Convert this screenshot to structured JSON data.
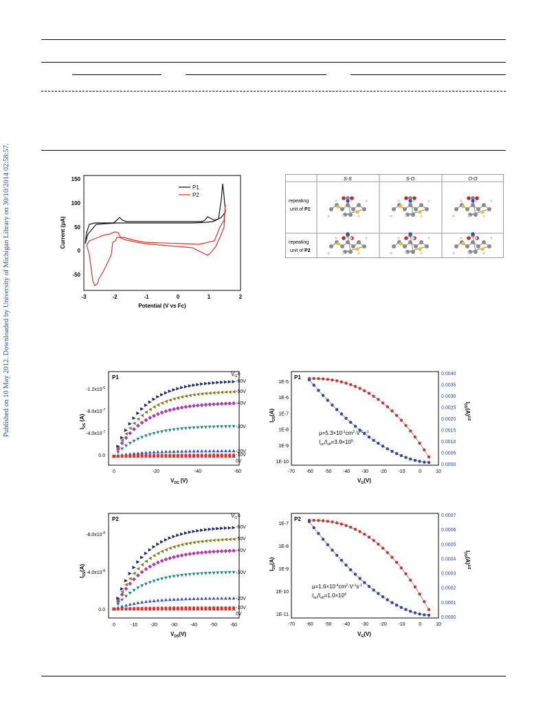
{
  "sidebar": {
    "text": "Published on 10 May 2012. Downloaded by University of Michigan Library on 30/10/2014 02:58:57."
  },
  "cv": {
    "ylabel": "Current (μA)",
    "xlabel": "Potential (V vs Fc)",
    "xticks": [
      "-3",
      "-2",
      "-1",
      "0",
      "1",
      "2"
    ],
    "yticks": [
      "150",
      "100",
      "50",
      "0",
      "-50"
    ],
    "legend": [
      "P1",
      "P2"
    ]
  },
  "table": {
    "headers": [
      "S-S",
      "S-O",
      "O-O"
    ],
    "row1": {
      "pre": "repeating",
      "label": "unit of",
      "bold": "P1"
    },
    "row2": {
      "pre": "repeating",
      "label": "unit of",
      "bold": "P2"
    }
  },
  "out1": {
    "tag": "P1",
    "vg": "V",
    "vglabels": [
      "-60V",
      "-50V",
      "-40V",
      "-30V",
      "-20V",
      "-10V",
      "0V"
    ],
    "yticks": [
      "-1.2x10",
      "-8.0x10",
      "-4.0x10",
      "0.0"
    ],
    "xticks": [
      "0",
      "-20",
      "-40",
      "-60"
    ],
    "ylabel": "I",
    "xlabel": "V"
  },
  "tr1": {
    "tag": "P1",
    "yticks": [
      "1E-5",
      "1E-6",
      "1E-7",
      "1E-8",
      "1E-9",
      "1E-10"
    ],
    "y2ticks": [
      "0.0040",
      "0.0035",
      "0.0030",
      "0.0025",
      "0.0020",
      "0.0015",
      "0.0010",
      "0.0005",
      "0.0000"
    ],
    "xticks": [
      "-70",
      "-60",
      "-50",
      "-40",
      "-30",
      "-20",
      "-10",
      "0",
      "10"
    ],
    "mu": "μ=5.3×10",
    "ratio": "I",
    "xlabel": "V"
  },
  "out2": {
    "tag": "P2",
    "vg": "V",
    "vglabels": [
      "-60V",
      "-50V",
      "-40V",
      "-30V",
      "-20V",
      "-10V",
      "0V"
    ],
    "yticks": [
      "-8.0x10",
      "-4.0x10",
      "0.0"
    ],
    "xticks": [
      "0",
      "-10",
      "-20",
      "-30",
      "-40",
      "-50",
      "-60"
    ]
  },
  "tr2": {
    "tag": "P2",
    "yticks": [
      "1E-7",
      "1E-8",
      "1E-9",
      "1E-10",
      "1E-11"
    ],
    "y2ticks": [
      "0.0007",
      "0.0006",
      "0.0005",
      "0.0004",
      "0.0003",
      "0.0002",
      "0.0001",
      "0.0000"
    ],
    "xticks": [
      "-70",
      "-60",
      "-50",
      "-40",
      "-30",
      "-20",
      "-10",
      "0",
      "10"
    ],
    "mu": "μ=1.6×10"
  },
  "colors": {
    "p1": "#111111",
    "p2": "#e0302a",
    "blue": "#2744a8",
    "navy": "#1a1f6e",
    "olive": "#7f7f1e",
    "magenta": "#b03ab0",
    "teal": "#1a8a7a",
    "royal": "#2d4fd0",
    "red": "#e0302a"
  }
}
